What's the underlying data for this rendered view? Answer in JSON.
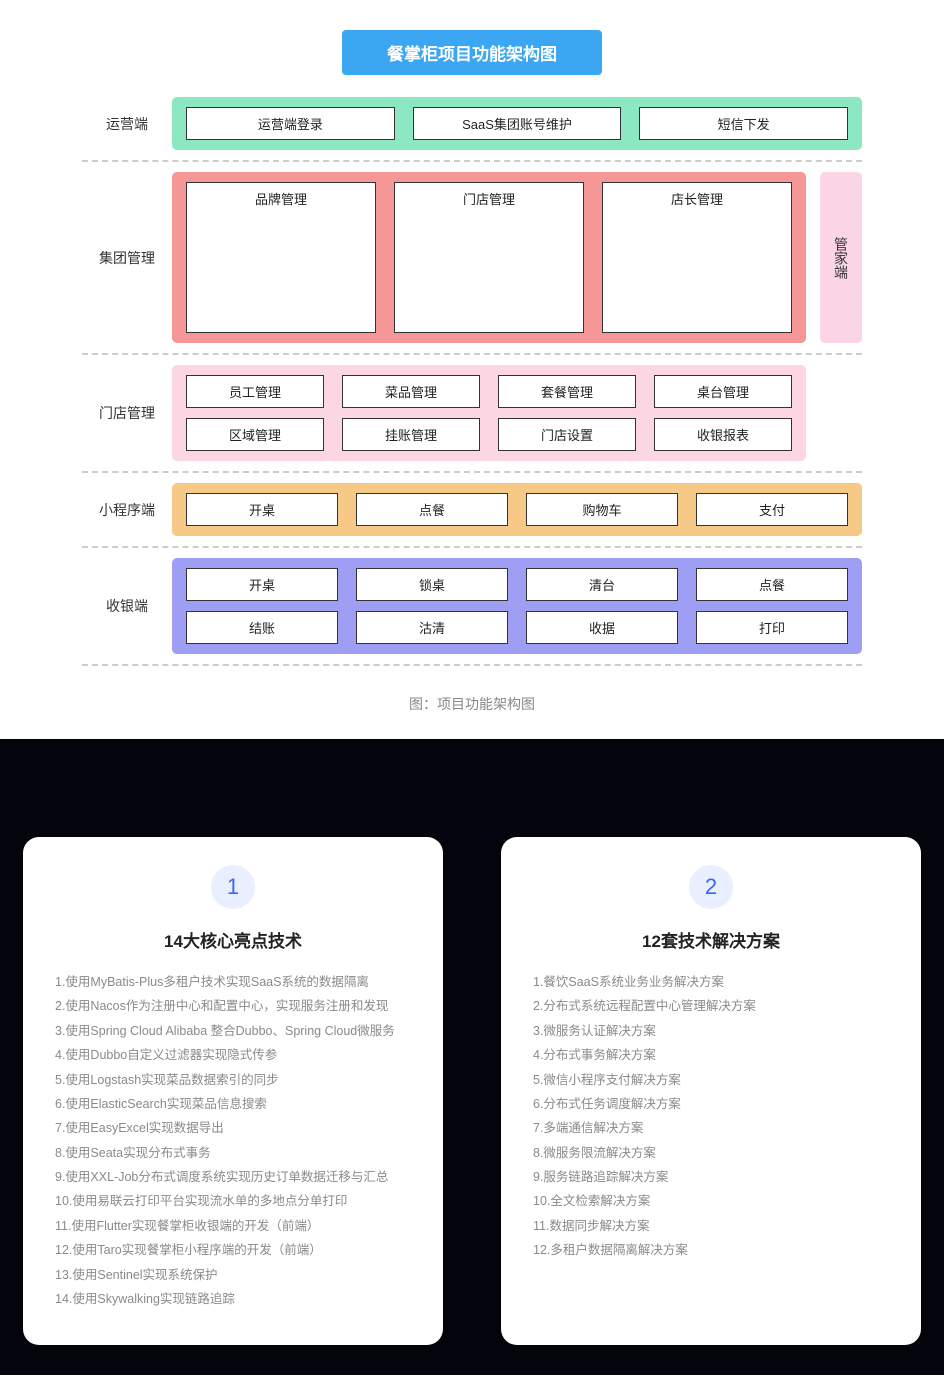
{
  "arch": {
    "title": "餐掌柜项目功能架构图",
    "title_bg": "#3ba6f2",
    "title_fg": "#ffffff",
    "caption": "图：项目功能架构图",
    "dash_color": "#cccccc",
    "side": {
      "label": "管家端",
      "bg": "#fbd5e6",
      "span_start": 1,
      "span_end": 2
    },
    "rows": [
      {
        "label": "运营端",
        "bg": "#8be8c0",
        "cols": 3,
        "with_side": false,
        "items": [
          "运营端登录",
          "SaaS集团账号维护",
          "短信下发"
        ]
      },
      {
        "label": "集团管理",
        "bg": "#f59797",
        "cols": 3,
        "with_side": true,
        "items": [
          "品牌管理",
          "门店管理",
          "店长管理"
        ]
      },
      {
        "label": "门店管理",
        "bg": "#fcd7e3",
        "cols": 4,
        "with_side": true,
        "items": [
          "员工管理",
          "菜品管理",
          "套餐管理",
          "桌台管理",
          "区域管理",
          "挂账管理",
          "门店设置",
          "收银报表"
        ]
      },
      {
        "label": "小程序端",
        "bg": "#f7c986",
        "cols": 4,
        "with_side": false,
        "items": [
          "开桌",
          "点餐",
          "购物车",
          "支付"
        ]
      },
      {
        "label": "收银端",
        "bg": "#9f9ef5",
        "cols": 4,
        "with_side": false,
        "items": [
          "开桌",
          "锁桌",
          "清台",
          "点餐",
          "结账",
          "沽清",
          "收据",
          "打印"
        ]
      }
    ]
  },
  "cards": {
    "bg": "#04040c",
    "card_bg": "#ffffff",
    "badge_bg": "#e9efff",
    "badge_fg": "#3a66ff",
    "list": [
      {
        "num": "1",
        "title": "14大核心亮点技术",
        "items": [
          "1.使用MyBatis-Plus多租户技术实现SaaS系统的数据隔离",
          "2.使用Nacos作为注册中心和配置中心，实现服务注册和发现",
          "3.使用Spring Cloud Alibaba 整合Dubbo、Spring Cloud微服务",
          "4.使用Dubbo自定义过滤器实现隐式传参",
          "5.使用Logstash实现菜品数据索引的同步",
          "6.使用ElasticSearch实现菜品信息搜索",
          "7.使用EasyExcel实现数据导出",
          "8.使用Seata实现分布式事务",
          "9.使用XXL-Job分布式调度系统实现历史订单数据迁移与汇总",
          "10.使用易联云打印平台实现流水单的多地点分单打印",
          "11.使用Flutter实现餐掌柜收银端的开发（前端）",
          "12.使用Taro实现餐掌柜小程序端的开发（前端）",
          "13.使用Sentinel实现系统保护",
          "14.使用Skywalking实现链路追踪"
        ]
      },
      {
        "num": "2",
        "title": "12套技术解决方案",
        "items": [
          "1.餐饮SaaS系统业务业务解决方案",
          "2.分布式系统远程配置中心管理解决方案",
          "3.微服务认证解决方案",
          "4.分布式事务解决方案",
          "5.微信小程序支付解决方案",
          "6.分布式任务调度解决方案",
          "7.多端通信解决方案",
          "8.微服务限流解决方案",
          "9.服务链路追踪解决方案",
          "10.全文检索解决方案",
          "11.数据同步解决方案",
          "12.多租户数据隔离解决方案"
        ]
      }
    ]
  }
}
